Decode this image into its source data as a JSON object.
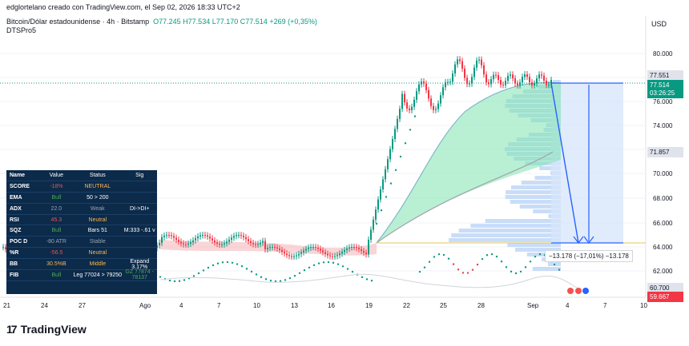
{
  "header": {
    "published_by": "edglortelano creado con TradingView.com, el Sep 02, 2026 18:33 UTC+2",
    "symbol": "Bitcoin/Dólar estadounidense · 4h · Bitstamp",
    "ohlc": {
      "o": "O77.245",
      "h": "H77.534",
      "l": "L77.170",
      "c": "C77.514",
      "chg": "+269 (+0,35%)"
    },
    "indicator": "DTSPro5",
    "currency": "USD"
  },
  "price_axis": {
    "ticks": [
      "80.000",
      "78.000",
      "76.000",
      "74.000",
      "72.000",
      "70.000",
      "68.000",
      "66.000",
      "64.000",
      "62.000"
    ],
    "tags": [
      {
        "label": "77.551",
        "bg": "#e0e3eb",
        "fg": "#131722"
      },
      {
        "label": "77.514",
        "bg": "#089981",
        "fg": "#ffffff"
      },
      {
        "label": "03:26:25",
        "bg": "#089981",
        "fg": "#ffffff"
      },
      {
        "label": "71.857",
        "bg": "#e0e3eb",
        "fg": "#131722"
      },
      {
        "label": "60.700",
        "bg": "#e0e3eb",
        "fg": "#131722"
      },
      {
        "label": "59.667",
        "bg": "#f23645",
        "fg": "#ffffff"
      }
    ]
  },
  "time_axis": [
    "21",
    "24",
    "27",
    "Ago",
    "4",
    "7",
    "10",
    "13",
    "16",
    "19",
    "22",
    "25",
    "28",
    "Sep",
    "4",
    "7",
    "10"
  ],
  "measure_label": "−13.178 (−17,01%) −13.178",
  "dashboard": {
    "headers": [
      "Name",
      "Value",
      "Status",
      "Sig"
    ],
    "rows": [
      {
        "name": "SCORE",
        "value": "-18%",
        "status": "NEUTRAL",
        "sig": "",
        "vc": "neg",
        "sc": "neu"
      },
      {
        "name": "EMA",
        "value": "Bull",
        "status": "50 > 200",
        "sig": "",
        "vc": "pos",
        "sc": ""
      },
      {
        "name": "ADX",
        "value": "22.0",
        "status": "Weak",
        "sig": "DI->DI+",
        "vc": "mut",
        "sc": "mut"
      },
      {
        "name": "RSI",
        "value": "45.3",
        "status": "Neutral",
        "sig": "",
        "vc": "neg",
        "sc": "neu"
      },
      {
        "name": "SQZ",
        "value": "Bull",
        "status": "Bars 51",
        "sig": "M:333 -.61 v",
        "vc": "pos",
        "sc": ""
      },
      {
        "name": "POC D",
        "value": "-80 ATR",
        "status": "Stable",
        "sig": "",
        "vc": "mut",
        "sc": "mut"
      },
      {
        "name": "%R",
        "value": "-56.5",
        "status": "Neutral",
        "sig": "",
        "vc": "neg",
        "sc": "neu"
      },
      {
        "name": "BB",
        "value": "30.5%B",
        "status": "Middle",
        "sig": "Expand 3.17%",
        "vc": "neu",
        "sc": "neu"
      },
      {
        "name": "FIB",
        "value": "Bull",
        "status": "Leg 77024 > 79250",
        "sig": "GZ 77874 - 78137",
        "vc": "pos",
        "sc": "",
        "gc": "pos"
      }
    ]
  },
  "brand": {
    "name": "TradingView",
    "mark": "17"
  }
}
